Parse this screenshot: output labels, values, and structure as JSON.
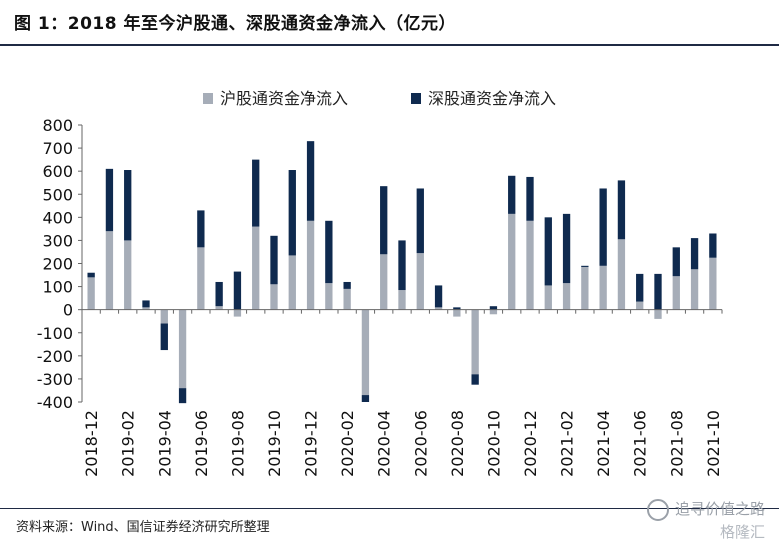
{
  "title": "图 1：2018 年至今沪股通、深股通资金净流入（亿元）",
  "source": "资料来源：Wind、国信证券经济研究所整理",
  "watermark": {
    "text": "追寻价值之路",
    "logo": "格隆汇"
  },
  "colors": {
    "series1": "#a6adb8",
    "series2": "#0f2a4f",
    "rule": "#1f2a44"
  },
  "chart_data": {
    "type": "bar",
    "stacked": true,
    "legend_position": "top",
    "ylim": [
      -400,
      800
    ],
    "yticks": [
      800,
      700,
      600,
      500,
      400,
      300,
      200,
      100,
      0,
      -100,
      -200,
      -300,
      -400
    ],
    "categories": [
      "2018-12",
      "2019-01",
      "2019-02",
      "2019-03",
      "2019-04",
      "2019-05",
      "2019-06",
      "2019-07",
      "2019-08",
      "2019-09",
      "2019-10",
      "2019-11",
      "2019-12",
      "2020-01",
      "2020-02",
      "2020-03",
      "2020-04",
      "2020-05",
      "2020-06",
      "2020-07",
      "2020-08",
      "2020-09",
      "2020-10",
      "2020-11",
      "2020-12",
      "2021-01",
      "2021-02",
      "2021-03",
      "2021-04",
      "2021-05",
      "2021-06",
      "2021-07",
      "2021-08",
      "2021-09",
      "2021-10"
    ],
    "xtick_labels": [
      "2018-12",
      "2019-02",
      "2019-04",
      "2019-06",
      "2019-08",
      "2019-10",
      "2019-12",
      "2020-02",
      "2020-04",
      "2020-06",
      "2020-08",
      "2020-10",
      "2020-12",
      "2021-02",
      "2021-04",
      "2021-06",
      "2021-08",
      "2021-10"
    ],
    "series": [
      {
        "name": "沪股通资金净流入",
        "values": [
          140,
          340,
          300,
          10,
          -60,
          -340,
          270,
          15,
          -30,
          360,
          110,
          235,
          385,
          115,
          90,
          -370,
          240,
          85,
          245,
          10,
          -30,
          -280,
          -20,
          415,
          385,
          105,
          115,
          185,
          190,
          305,
          35,
          -40,
          145,
          175,
          225
        ]
      },
      {
        "name": "深股通资金净流入",
        "values": [
          20,
          270,
          305,
          30,
          -115,
          -65,
          160,
          105,
          165,
          290,
          210,
          370,
          345,
          270,
          30,
          -30,
          295,
          215,
          280,
          95,
          10,
          -45,
          15,
          165,
          190,
          295,
          300,
          5,
          335,
          255,
          120,
          155,
          125,
          135,
          105
        ]
      }
    ]
  }
}
